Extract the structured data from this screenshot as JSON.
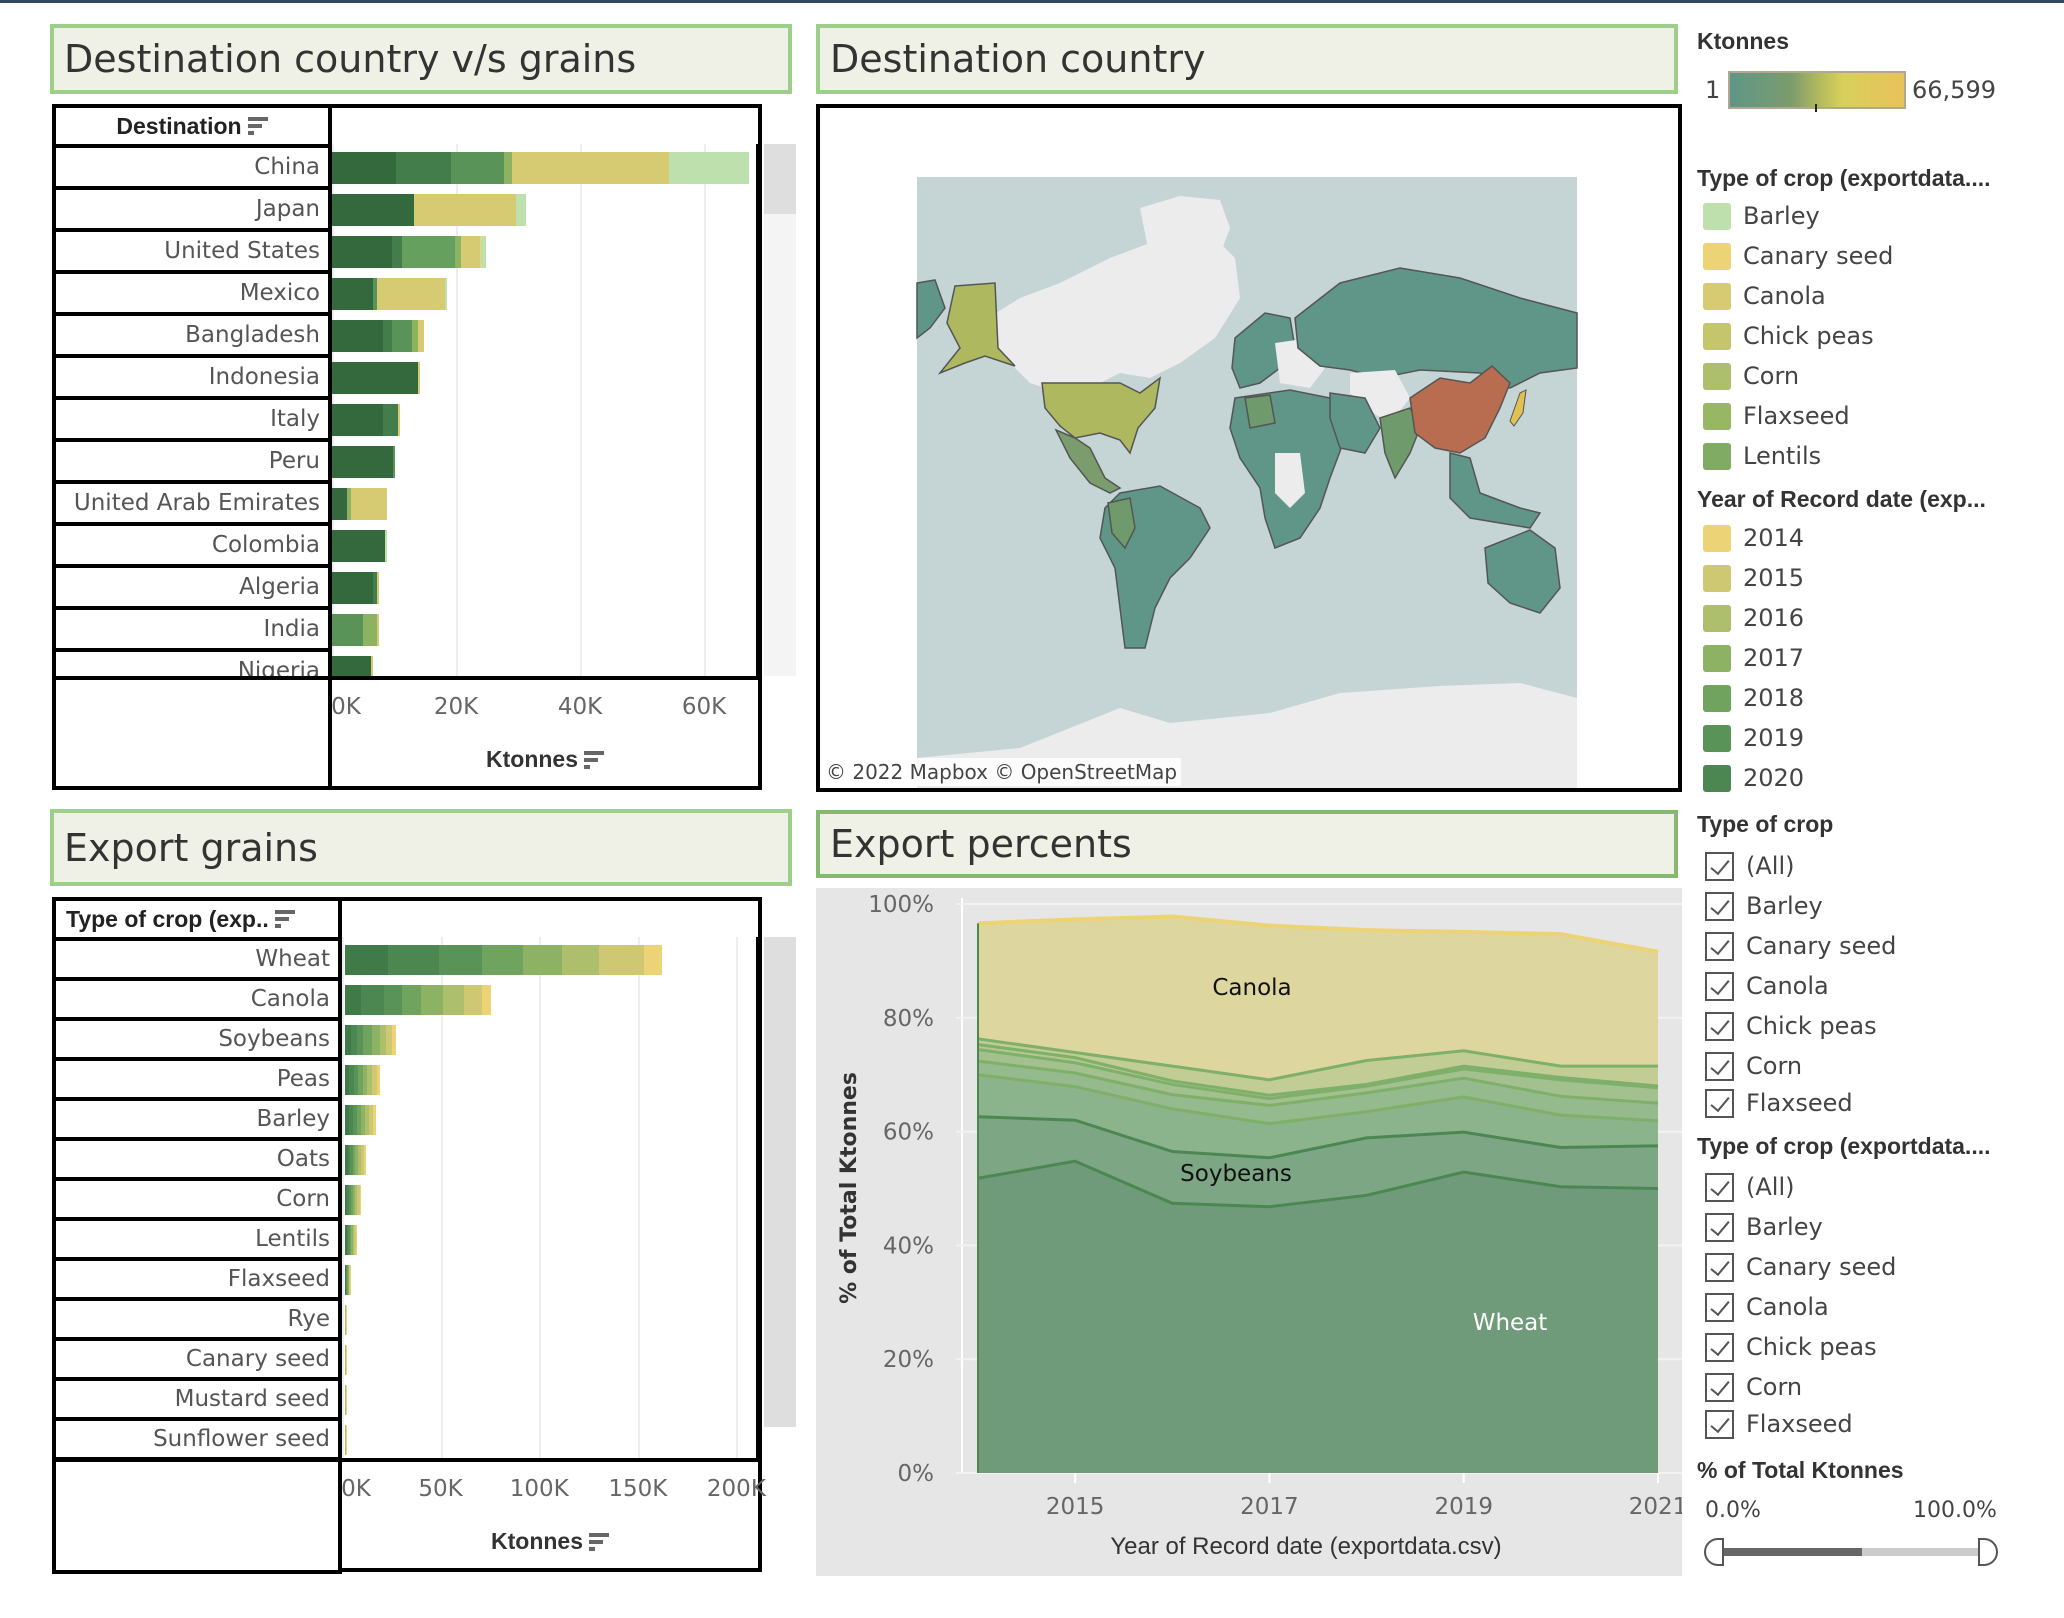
{
  "colors": {
    "years": {
      "2014": "#ecd375",
      "2015": "#cfc872",
      "2016": "#adbe6c",
      "2017": "#8db264",
      "2018": "#6fa35e",
      "2019": "#5a9358",
      "2020": "#4c8752",
      "2021": "#3f7a48"
    },
    "dest_crops": {
      "Wheat_2020": "#33693d",
      "Wheat_2019": "#437d4c",
      "Wheat_2018": "#599357",
      "Wheat_2017": "#8cb262",
      "Canola": "#d6cb72",
      "Canary seed": "#ecd375",
      "Barley": "#bde0ad",
      "Mid": "#65a05f"
    },
    "map": {
      "ocean": "#c5d5d5",
      "land_nodata": "#eaeaea",
      "low": "#5f9688",
      "mid": "#aeb85e",
      "high": "#b86c50"
    }
  },
  "panels": {
    "destination_vs_grains": {
      "title": "Destination country v/s grains",
      "row_header": "Destination",
      "axis_title": "Ktonnes"
    },
    "destination_country": {
      "title": "Destination country",
      "credit": "© 2022 Mapbox  © OpenStreetMap"
    },
    "export_grains": {
      "title": "Export grains",
      "row_header": "Type of crop (exp..",
      "axis_title": "Ktonnes"
    },
    "export_percents": {
      "title": "Export percents"
    }
  },
  "chart_data": [
    {
      "id": "destination_bars",
      "type": "bar",
      "orientation": "horizontal",
      "stacked": true,
      "title": "Destination country v/s grains",
      "xlabel": "Ktonnes",
      "ylabel": "Destination",
      "xlim": [
        0,
        70000
      ],
      "xticks": [
        0,
        20000,
        40000,
        60000
      ],
      "xtick_labels": [
        "0K",
        "20K",
        "40K",
        "60K"
      ],
      "grid": true,
      "categories": [
        "China",
        "Japan",
        "United States",
        "Mexico",
        "Bangladesh",
        "Indonesia",
        "Italy",
        "Peru",
        "United Arab Emirates",
        "Colombia",
        "Algeria",
        "India",
        "Nigeria"
      ],
      "segments": [
        [
          {
            "k": "c1",
            "v": 10.3
          },
          {
            "k": "c2",
            "v": 8.9
          },
          {
            "k": "c3",
            "v": 8.5
          },
          {
            "k": "c4",
            "v": 1.3
          },
          {
            "k": "canola",
            "v": 25.4
          },
          {
            "k": "barley",
            "v": 12.9
          }
        ],
        [
          {
            "k": "c1",
            "v": 13.2
          },
          {
            "k": "canola",
            "v": 16.5
          },
          {
            "k": "barley",
            "v": 1.6
          }
        ],
        [
          {
            "k": "c1",
            "v": 9.6
          },
          {
            "k": "c2",
            "v": 1.7
          },
          {
            "k": "c5",
            "v": 8.5
          },
          {
            "k": "c4",
            "v": 1.0
          },
          {
            "k": "canola",
            "v": 3.0
          },
          {
            "k": "canary",
            "v": 0.3
          },
          {
            "k": "barley",
            "v": 0.7
          }
        ],
        [
          {
            "k": "c1",
            "v": 6.6
          },
          {
            "k": "c3",
            "v": 0.7
          },
          {
            "k": "canola",
            "v": 10.9
          },
          {
            "k": "barley",
            "v": 0.3
          }
        ],
        [
          {
            "k": "c1",
            "v": 8.3
          },
          {
            "k": "c2",
            "v": 1.3
          },
          {
            "k": "c3",
            "v": 3.3
          },
          {
            "k": "c4",
            "v": 1.0
          },
          {
            "k": "canola",
            "v": 1.0
          }
        ],
        [
          {
            "k": "c1",
            "v": 13.9
          },
          {
            "k": "canola",
            "v": 0.3
          }
        ],
        [
          {
            "k": "c1",
            "v": 8.3
          },
          {
            "k": "c2",
            "v": 2.3
          },
          {
            "k": "canola",
            "v": 0.3
          }
        ],
        [
          {
            "k": "c1",
            "v": 9.9
          },
          {
            "k": "c3",
            "v": 0.3
          }
        ],
        [
          {
            "k": "c1",
            "v": 2.4
          },
          {
            "k": "c4",
            "v": 0.6
          },
          {
            "k": "canola",
            "v": 5.95
          }
        ],
        [
          {
            "k": "c1",
            "v": 8.6
          },
          {
            "k": "barley",
            "v": 0.3
          }
        ],
        [
          {
            "k": "c1",
            "v": 6.6
          },
          {
            "k": "c2",
            "v": 0.7
          },
          {
            "k": "canola",
            "v": 0.3
          }
        ],
        [
          {
            "k": "c3",
            "v": 5.0
          },
          {
            "k": "c4",
            "v": 2.3
          },
          {
            "k": "canola",
            "v": 0.3
          }
        ],
        [
          {
            "k": "c1",
            "v": 6.3
          },
          {
            "k": "canola",
            "v": 0.3
          }
        ]
      ],
      "units": "thousand Ktonnes per segment",
      "totals_ktonnes": [
        67300,
        31300,
        24800,
        18500,
        14900,
        14200,
        10900,
        10200,
        8950,
        8900,
        7600,
        7600,
        6600
      ]
    },
    {
      "id": "destination_map",
      "type": "heatmap",
      "title": "Destination country",
      "legend_title": "Ktonnes",
      "range": [
        1,
        66599
      ],
      "range_labels": [
        "1",
        "66,599"
      ],
      "highlight": {
        "China": "max",
        "Japan": "high",
        "United States": "mid",
        "Mexico": "mid-low"
      }
    },
    {
      "id": "export_grains_bars",
      "type": "bar",
      "orientation": "horizontal",
      "stacked": true,
      "title": "Export grains",
      "xlabel": "Ktonnes",
      "ylabel": "Type of crop (exp..",
      "xlim": [
        0,
        215000
      ],
      "xticks": [
        0,
        50000,
        100000,
        150000,
        200000
      ],
      "xtick_labels": [
        "0K",
        "50K",
        "100K",
        "150K",
        "200K"
      ],
      "grid": true,
      "stack_order": [
        "2021",
        "2020",
        "2019",
        "2018",
        "2017",
        "2016",
        "2015",
        "2014"
      ],
      "categories": [
        "Wheat",
        "Canola",
        "Soybeans",
        "Peas",
        "Barley",
        "Oats",
        "Corn",
        "Lentils",
        "Flaxseed",
        "Rye",
        "Canary seed",
        "Mustard seed",
        "Sunflower seed"
      ],
      "series_ktonnes_thousands": [
        [
          21.8,
          26.0,
          21.8,
          20.7,
          19.7,
          18.7,
          22.9,
          9.3
        ],
        [
          8.3,
          11.4,
          9.4,
          9.3,
          11.4,
          10.4,
          9.4,
          4.2
        ],
        [
          3.1,
          3.1,
          3.1,
          4.2,
          4.1,
          3.2,
          3.1,
          2.1
        ],
        [
          2.0,
          2.4,
          2.4,
          2.2,
          2.4,
          2.4,
          2.4,
          1.4
        ],
        [
          2.0,
          2.2,
          2.0,
          2.0,
          2.0,
          2.0,
          2.2,
          1.2
        ],
        [
          1.3,
          1.4,
          1.3,
          1.3,
          1.4,
          1.3,
          1.4,
          1.0
        ],
        [
          1.0,
          1.1,
          1.0,
          1.1,
          1.1,
          1.0,
          1.2,
          0.8
        ],
        [
          0.8,
          0.8,
          0.8,
          0.8,
          0.8,
          0.8,
          0.8,
          0.6
        ],
        [
          0.3,
          0.3,
          0.4,
          0.4,
          0.4,
          0.4,
          0.5,
          0.4
        ],
        [
          0.05,
          0.05,
          0.05,
          0.05,
          0.05,
          0.05,
          0.05,
          0.05
        ],
        [
          0.05,
          0.05,
          0.05,
          0.05,
          0.05,
          0.05,
          0.05,
          0.05
        ],
        [
          0.05,
          0.05,
          0.05,
          0.05,
          0.05,
          0.05,
          0.05,
          0.05
        ],
        [
          0.05,
          0.05,
          0.05,
          0.05,
          0.05,
          0.05,
          0.05,
          0.05
        ]
      ],
      "totals_ktonnes": [
        160900,
        73800,
        26000,
        17600,
        15600,
        10400,
        8300,
        6200,
        3100,
        400,
        400,
        400,
        400
      ]
    },
    {
      "id": "export_percents_area",
      "type": "area",
      "stacked": true,
      "title": "Export percents",
      "xlabel": "Year of Record date (exportdata.csv)",
      "ylabel": "% of Total Ktonnes",
      "x": [
        2014,
        2015,
        2016,
        2017,
        2018,
        2019,
        2020,
        2021
      ],
      "xticks": [
        2015,
        2017,
        2019,
        2021
      ],
      "ylim": [
        0,
        100
      ],
      "yticks": [
        0,
        20,
        40,
        60,
        80,
        100
      ],
      "ytick_labels": [
        "0%",
        "20%",
        "40%",
        "60%",
        "80%",
        "100%"
      ],
      "grid": true,
      "cumulative_boundaries": [
        {
          "name": "Wheat",
          "label": "Wheat",
          "top": [
            51.8,
            54.8,
            47.4,
            46.8,
            48.8,
            52.9,
            50.3,
            50.0
          ],
          "color": "#6f9b7b"
        },
        {
          "name": "Soybeans",
          "label": "Soybeans",
          "top": [
            62.6,
            62.0,
            56.5,
            55.4,
            58.9,
            59.9,
            57.2,
            57.5
          ],
          "color": "#7da784"
        },
        {
          "name": "Peas",
          "label": "",
          "top": [
            70.0,
            67.9,
            64.0,
            61.4,
            63.5,
            66.1,
            62.9,
            61.9
          ],
          "color": "#8bb38c"
        },
        {
          "name": "Barley",
          "label": "",
          "top": [
            72.4,
            70.3,
            66.5,
            64.6,
            66.8,
            69.4,
            66.2,
            65.0
          ],
          "color": "#95ba8d"
        },
        {
          "name": "Oats",
          "label": "",
          "top": [
            74.4,
            72.1,
            68.3,
            65.8,
            68.0,
            71.0,
            69.1,
            67.7
          ],
          "color": "#a3c18f"
        },
        {
          "name": "Corn",
          "label": "",
          "top": [
            75.3,
            73.0,
            68.9,
            66.4,
            68.3,
            71.5,
            69.5,
            68.0
          ],
          "color": "#b3c793"
        },
        {
          "name": "Other",
          "label": "",
          "top": [
            76.3,
            73.9,
            71.5,
            69.1,
            72.5,
            74.2,
            71.5,
            71.5
          ],
          "color": "#c2cc95"
        },
        {
          "name": "Canola",
          "label": "Canola",
          "top": [
            96.6,
            97.3,
            97.8,
            96.2,
            95.4,
            95.1,
            94.7,
            91.6
          ],
          "color": "#ddd69e"
        }
      ],
      "annotations": [
        "Canola",
        "Soybeans",
        "Wheat"
      ]
    }
  ],
  "sidebar": {
    "ktonnes_legend": {
      "title": "Ktonnes",
      "min": "1",
      "max": "66,599"
    },
    "crop_legend": {
      "title": "Type of crop (exportdata....",
      "items": [
        {
          "label": "Barley",
          "color": "#bde0ad"
        },
        {
          "label": "Canary seed",
          "color": "#ecd375"
        },
        {
          "label": "Canola",
          "color": "#d6cb72"
        },
        {
          "label": "Chick peas",
          "color": "#c5c66c"
        },
        {
          "label": "Corn",
          "color": "#adbe6c"
        },
        {
          "label": "Flaxseed",
          "color": "#98b765"
        },
        {
          "label": "Lentils",
          "color": "#80ab62"
        }
      ]
    },
    "year_legend": {
      "title": "Year of Record date (exp...",
      "items": [
        {
          "label": "2014",
          "color": "#ecd375"
        },
        {
          "label": "2015",
          "color": "#cfc872"
        },
        {
          "label": "2016",
          "color": "#adbe6c"
        },
        {
          "label": "2017",
          "color": "#8db264"
        },
        {
          "label": "2018",
          "color": "#6fa35e"
        },
        {
          "label": "2019",
          "color": "#5a9358"
        },
        {
          "label": "2020",
          "color": "#4c8752"
        }
      ]
    },
    "filter1": {
      "title": "Type of crop",
      "items": [
        "(All)",
        "Barley",
        "Canary seed",
        "Canola",
        "Chick peas",
        "Corn",
        "Flaxseed"
      ]
    },
    "filter2": {
      "title": "Type of crop (exportdata....",
      "items": [
        "(All)",
        "Barley",
        "Canary seed",
        "Canola",
        "Chick peas",
        "Corn",
        "Flaxseed"
      ]
    },
    "pct_filter": {
      "title": "% of Total Ktonnes",
      "min_label": "0.0%",
      "max_label": "100.0%",
      "range": [
        0.0,
        100.0
      ]
    }
  }
}
